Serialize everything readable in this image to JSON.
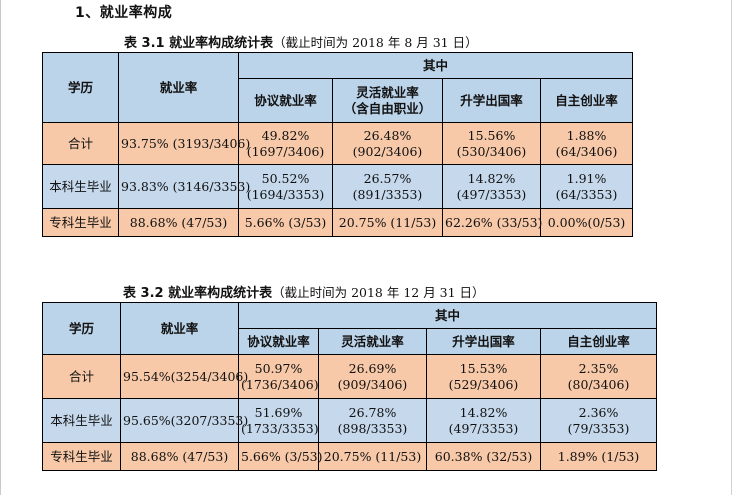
{
  "section_heading": "1、就业率构成",
  "tables": [
    {
      "caption_label": "表 3.1   就业率构成统计表",
      "caption_note": "（截止时间为 2018 年 8 月 31 日）",
      "header": {
        "degree": "学历",
        "rate": "就业率",
        "group": "其中",
        "cols": [
          "协议就业率",
          "灵活就业率",
          "（含自由职业）",
          "升学出国率",
          "自主创业率"
        ]
      },
      "rows": [
        {
          "label": "合计",
          "rate": "93.75% (3193/3406)",
          "c1": [
            "49.82%",
            "(1697/3406)"
          ],
          "c2": [
            "26.48%",
            "(902/3406)"
          ],
          "c3": [
            "15.56%",
            "(530/3406)"
          ],
          "c4": [
            "1.88%",
            "(64/3406)"
          ]
        },
        {
          "label": "本科生毕业",
          "rate": "93.83% (3146/3353)",
          "c1": [
            "50.52%",
            "(1694/3353)"
          ],
          "c2": [
            "26.57%",
            "(891/3353)"
          ],
          "c3": [
            "14.82%",
            "(497/3353)"
          ],
          "c4": [
            "1.91%",
            "(64/3353)"
          ]
        },
        {
          "label": "专科生毕业",
          "rate": "88.68% (47/53)",
          "c1": "5.66% (3/53)",
          "c2": "20.75% (11/53)",
          "c3": "62.26% (33/53)",
          "c4": "0.00%(0/53)"
        }
      ]
    },
    {
      "caption_label": "表 3.2   就业率构成统计表",
      "caption_note": "（截止时间为 2018 年 12 月 31 日）",
      "header": {
        "degree": "学历",
        "rate": "就业率",
        "group": "其中",
        "cols": [
          "协议就业率",
          "灵活就业率",
          "升学出国率",
          "自主创业率"
        ]
      },
      "rows": [
        {
          "label": "合计",
          "rate": "95.54%(3254/3406)",
          "c1": [
            "50.97%",
            "(1736/3406)"
          ],
          "c2": [
            "26.69%",
            "(909/3406)"
          ],
          "c3": [
            "15.53%",
            "(529/3406)"
          ],
          "c4": [
            "2.35%",
            "(80/3406)"
          ]
        },
        {
          "label": "本科生毕业",
          "rate": "95.65%(3207/3353)",
          "c1": [
            "51.69%",
            "(1733/3353)"
          ],
          "c2": [
            "26.78%",
            "(898/3353)"
          ],
          "c3": [
            "14.82%",
            "(497/3353)"
          ],
          "c4": [
            "2.36%",
            "(79/3353)"
          ]
        },
        {
          "label": "专科生毕业",
          "rate": "88.68% (47/53)",
          "c1": "5.66% (3/53)",
          "c2": "20.75% (11/53)",
          "c3": "60.38% (32/53)",
          "c4": "1.89% (1/53)"
        }
      ]
    }
  ],
  "colors": {
    "header_blue": "#bcd4ea",
    "row_orange": "#f7c9a8",
    "row_blue": "#c5d8ec"
  }
}
